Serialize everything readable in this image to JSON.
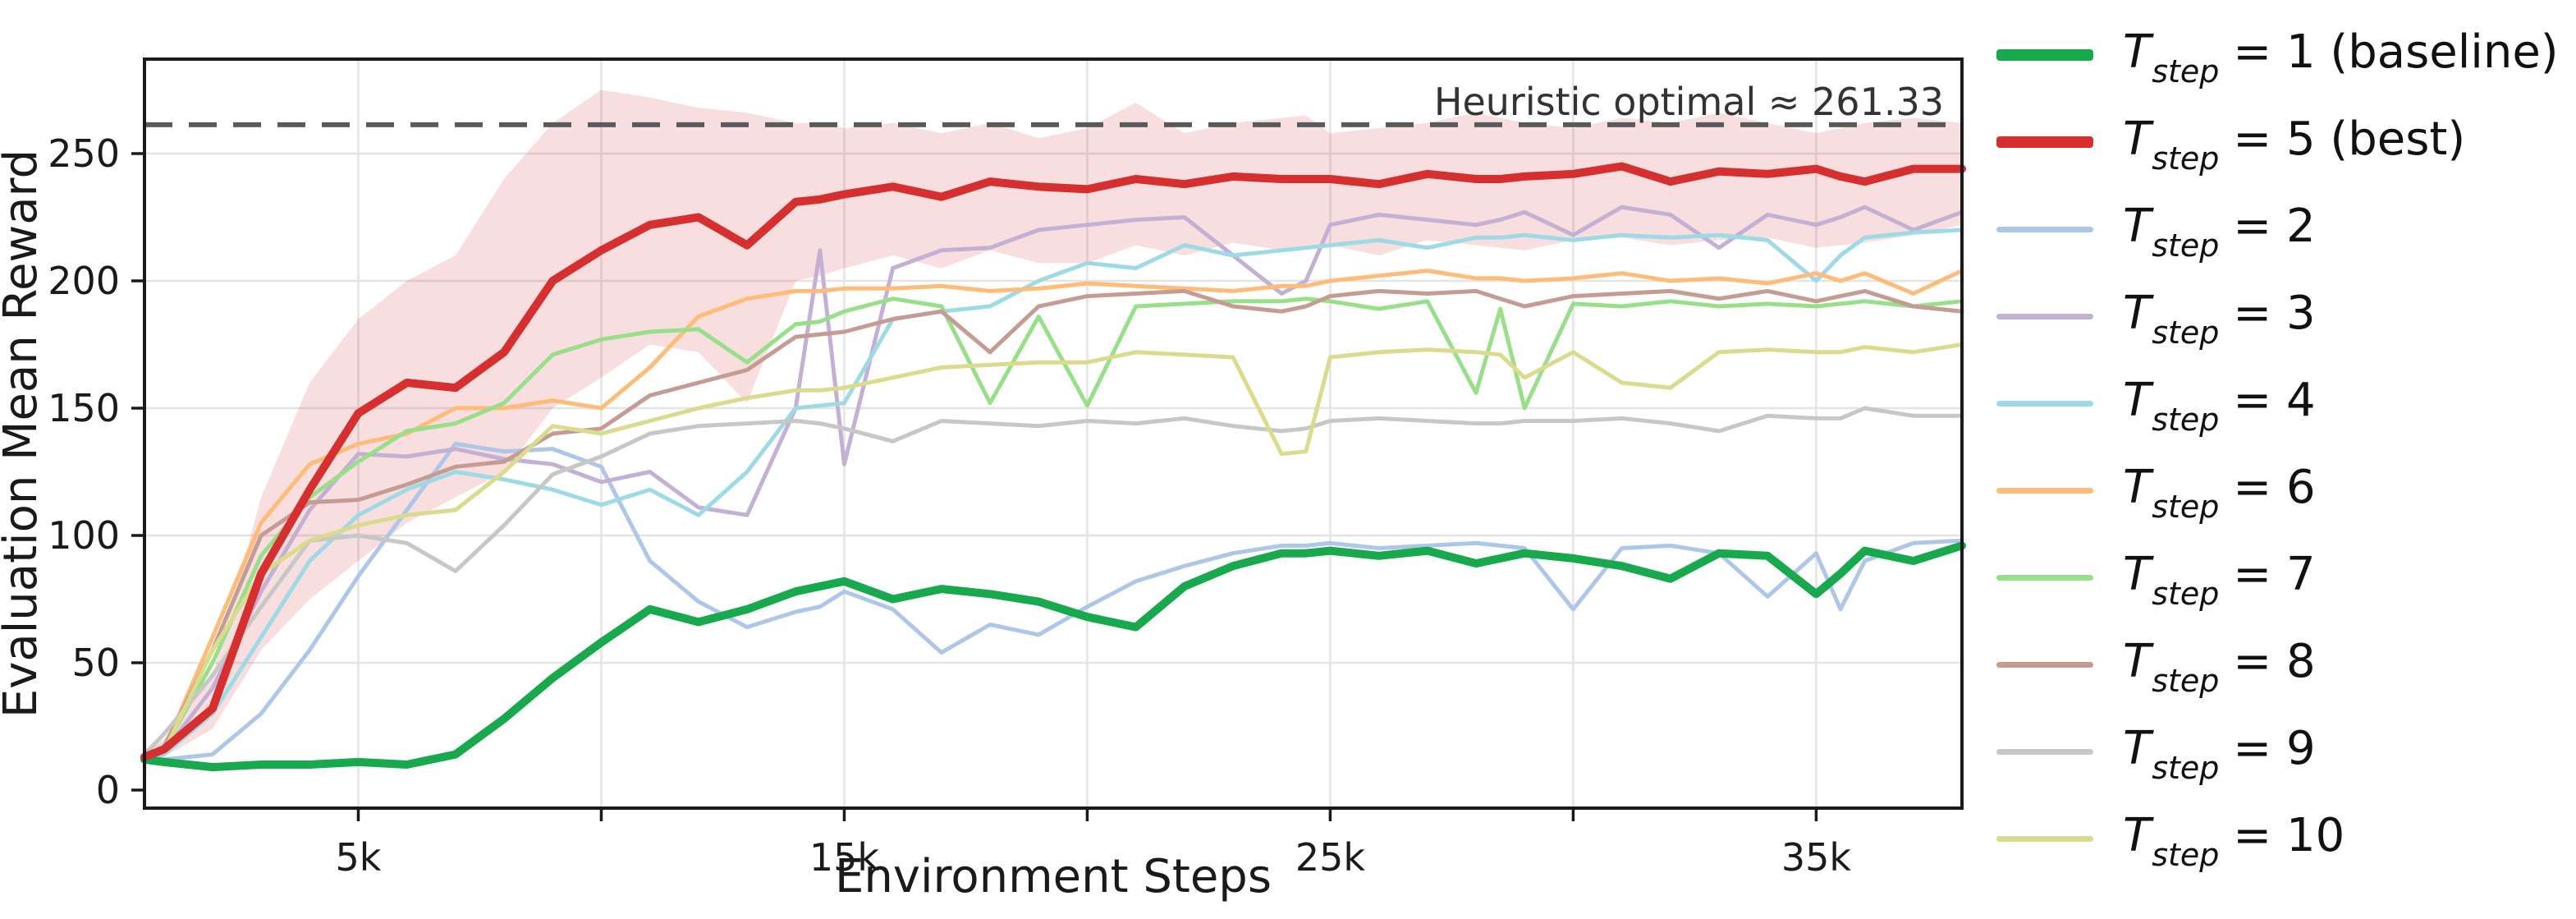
{
  "chart_data": {
    "type": "line",
    "xlabel": "Environment Steps",
    "ylabel": "Evaluation Mean Reward",
    "xlim": [
      600,
      38000
    ],
    "ylim": [
      -7.1,
      287.1
    ],
    "grid": true,
    "legend_position": "right-outside",
    "x_ticks": [
      {
        "value": 5000,
        "label": "5k"
      },
      {
        "value": 10000,
        "label": ""
      },
      {
        "value": 15000,
        "label": "15k"
      },
      {
        "value": 20000,
        "label": ""
      },
      {
        "value": 25000,
        "label": "25k"
      },
      {
        "value": 30000,
        "label": ""
      },
      {
        "value": 35000,
        "label": "35k"
      }
    ],
    "y_ticks": [
      {
        "value": 0,
        "label": "0"
      },
      {
        "value": 50,
        "label": "50"
      },
      {
        "value": 100,
        "label": "100"
      },
      {
        "value": 150,
        "label": "150"
      },
      {
        "value": 200,
        "label": "200"
      },
      {
        "value": 250,
        "label": "250"
      }
    ],
    "reference_line": {
      "y": 261.33,
      "color": "#5a5a5a",
      "style": "dashed"
    },
    "annotation": {
      "text": "Heuristic optimal ≈ 261.33",
      "y": 261.33,
      "color": "#333333"
    },
    "colors": {
      "baseline_green": "#18a84e",
      "best_red": "#d62f2f",
      "grid": "#e4e4e4",
      "spine": "#1a1a1a",
      "band_fill": "#d62f2f"
    },
    "x": [
      600,
      1000,
      2000,
      3000,
      4000,
      5000,
      6000,
      7000,
      8000,
      9000,
      10000,
      11000,
      12000,
      13000,
      14000,
      14500,
      15000,
      16000,
      17000,
      18000,
      19000,
      20000,
      21000,
      22000,
      23000,
      24000,
      24500,
      25000,
      26000,
      27000,
      28000,
      28500,
      29000,
      30000,
      31000,
      32000,
      33000,
      34000,
      35000,
      35500,
      36000,
      37000,
      38000
    ],
    "series": [
      {
        "name": "T_step = 1 (baseline)",
        "legend": {
          "var": "T",
          "sub": "step",
          "rest": " = 1 (baseline)"
        },
        "color": "#18a84e",
        "width": 10,
        "z": 2,
        "values": [
          12,
          11,
          9,
          10,
          10,
          11,
          10,
          14,
          28,
          44,
          58,
          71,
          66,
          71,
          78,
          80,
          82,
          75,
          79,
          77,
          74,
          68,
          64,
          80,
          88,
          93,
          93,
          94,
          92,
          94,
          89,
          91,
          93,
          91,
          88,
          83,
          93,
          92,
          77,
          85,
          94,
          90,
          96
        ]
      },
      {
        "name": "T_step = 5 (best)",
        "legend": {
          "var": "T",
          "sub": "step",
          "rest": " = 5 (best)"
        },
        "color": "#d62f2f",
        "width": 10,
        "z": 3,
        "values": [
          13,
          16,
          32,
          85,
          118,
          148,
          160,
          158,
          172,
          200,
          212,
          222,
          225,
          214,
          231,
          232,
          234,
          237,
          233,
          239,
          237,
          236,
          240,
          238,
          241,
          240,
          240,
          240,
          238,
          242,
          240,
          240,
          241,
          242,
          245,
          239,
          243,
          242,
          244,
          241,
          239,
          244,
          244
        ],
        "band": {
          "opacity": 0.16,
          "lower": [
            10,
            13,
            24,
            55,
            75,
            90,
            105,
            115,
            125,
            150,
            162,
            175,
            172,
            152,
            200,
            202,
            205,
            210,
            205,
            212,
            207,
            207,
            214,
            210,
            215,
            212,
            213,
            214,
            210,
            216,
            214,
            213,
            212,
            216,
            217,
            214,
            216,
            217,
            213,
            214,
            215,
            218,
            222
          ],
          "upper": [
            16,
            20,
            45,
            115,
            160,
            185,
            200,
            210,
            240,
            262,
            275,
            272,
            268,
            266,
            262,
            262,
            260,
            262,
            258,
            262,
            256,
            260,
            270,
            258,
            262,
            264,
            265,
            258,
            260,
            262,
            266,
            264,
            262,
            260,
            264,
            262,
            266,
            262,
            258,
            260,
            262,
            264,
            262
          ]
        }
      },
      {
        "name": "T_step = 2",
        "legend": {
          "var": "T",
          "sub": "step",
          "rest": " = 2"
        },
        "color": "#aec7e8",
        "width": 5,
        "z": 1,
        "values": [
          13,
          12,
          14,
          30,
          55,
          84,
          110,
          136,
          133,
          134,
          127,
          90,
          74,
          64,
          70,
          72,
          78,
          71,
          54,
          65,
          61,
          72,
          82,
          88,
          93,
          96,
          96,
          97,
          95,
          96,
          97,
          96,
          95,
          71,
          95,
          96,
          93,
          76,
          93,
          71,
          90,
          97,
          98
        ]
      },
      {
        "name": "T_step = 3",
        "legend": {
          "var": "T",
          "sub": "step",
          "rest": " = 3"
        },
        "color": "#c5b0d5",
        "width": 5,
        "z": 1,
        "values": [
          13,
          15,
          40,
          78,
          110,
          132,
          131,
          134,
          130,
          128,
          121,
          125,
          111,
          108,
          150,
          212,
          128,
          205,
          212,
          213,
          220,
          222,
          224,
          225,
          210,
          195,
          200,
          222,
          226,
          224,
          222,
          224,
          227,
          218,
          229,
          226,
          213,
          226,
          222,
          225,
          229,
          220,
          227
        ]
      },
      {
        "name": "T_step = 4",
        "legend": {
          "var": "T",
          "sub": "step",
          "rest": " = 4"
        },
        "color": "#9edae5",
        "width": 5,
        "z": 1,
        "values": [
          13,
          14,
          30,
          60,
          90,
          108,
          118,
          125,
          122,
          118,
          112,
          118,
          108,
          125,
          150,
          151,
          152,
          185,
          188,
          190,
          200,
          207,
          205,
          214,
          210,
          212,
          213,
          214,
          216,
          213,
          217,
          217,
          218,
          216,
          218,
          217,
          218,
          216,
          200,
          210,
          217,
          219,
          220
        ]
      },
      {
        "name": "T_step = 6",
        "legend": {
          "var": "T",
          "sub": "step",
          "rest": " = 6"
        },
        "color": "#ffbb78",
        "width": 5,
        "z": 1,
        "values": [
          13,
          16,
          60,
          105,
          128,
          136,
          140,
          150,
          150,
          153,
          150,
          166,
          186,
          193,
          196,
          196,
          197,
          197,
          198,
          196,
          197,
          199,
          198,
          197,
          196,
          198,
          198,
          200,
          202,
          204,
          201,
          201,
          200,
          201,
          203,
          200,
          201,
          199,
          203,
          200,
          203,
          195,
          204
        ]
      },
      {
        "name": "T_step = 7",
        "legend": {
          "var": "T",
          "sub": "step",
          "rest": " = 7"
        },
        "color": "#98df8a",
        "width": 5,
        "z": 1,
        "values": [
          13,
          16,
          50,
          92,
          115,
          129,
          141,
          144,
          152,
          171,
          177,
          180,
          181,
          168,
          183,
          184,
          188,
          193,
          190,
          152,
          186,
          151,
          190,
          191,
          192,
          192,
          193,
          192,
          189,
          192,
          156,
          189,
          150,
          191,
          190,
          192,
          190,
          191,
          190,
          191,
          192,
          190,
          192
        ]
      },
      {
        "name": "T_step = 8",
        "legend": {
          "var": "T",
          "sub": "step",
          "rest": " = 8"
        },
        "color": "#c49c94",
        "width": 5,
        "z": 1,
        "values": [
          13,
          17,
          55,
          100,
          113,
          114,
          120,
          127,
          129,
          140,
          142,
          155,
          160,
          165,
          178,
          179,
          180,
          185,
          188,
          172,
          190,
          194,
          195,
          196,
          190,
          188,
          190,
          194,
          196,
          195,
          196,
          193,
          190,
          194,
          195,
          196,
          193,
          196,
          192,
          194,
          196,
          190,
          188
        ]
      },
      {
        "name": "T_step = 9",
        "legend": {
          "var": "T",
          "sub": "step",
          "rest": " = 9"
        },
        "color": "#c7c7c7",
        "width": 5,
        "z": 1,
        "values": [
          14,
          22,
          45,
          72,
          98,
          100,
          97,
          86,
          104,
          124,
          131,
          140,
          143,
          144,
          145,
          144,
          142,
          137,
          145,
          144,
          143,
          145,
          144,
          146,
          143,
          141,
          142,
          145,
          146,
          145,
          144,
          144,
          145,
          145,
          146,
          144,
          141,
          147,
          146,
          146,
          150,
          147,
          147
        ]
      },
      {
        "name": "T_step = 10",
        "legend": {
          "var": "T",
          "sub": "step",
          "rest": " = 10"
        },
        "color": "#dbdb8d",
        "width": 5,
        "z": 1,
        "values": [
          13,
          15,
          55,
          85,
          98,
          104,
          108,
          110,
          125,
          143,
          140,
          145,
          150,
          154,
          157,
          157,
          158,
          162,
          166,
          167,
          168,
          168,
          172,
          171,
          170,
          132,
          133,
          170,
          172,
          173,
          172,
          171,
          162,
          172,
          160,
          158,
          172,
          173,
          172,
          172,
          174,
          172,
          175
        ]
      }
    ]
  }
}
